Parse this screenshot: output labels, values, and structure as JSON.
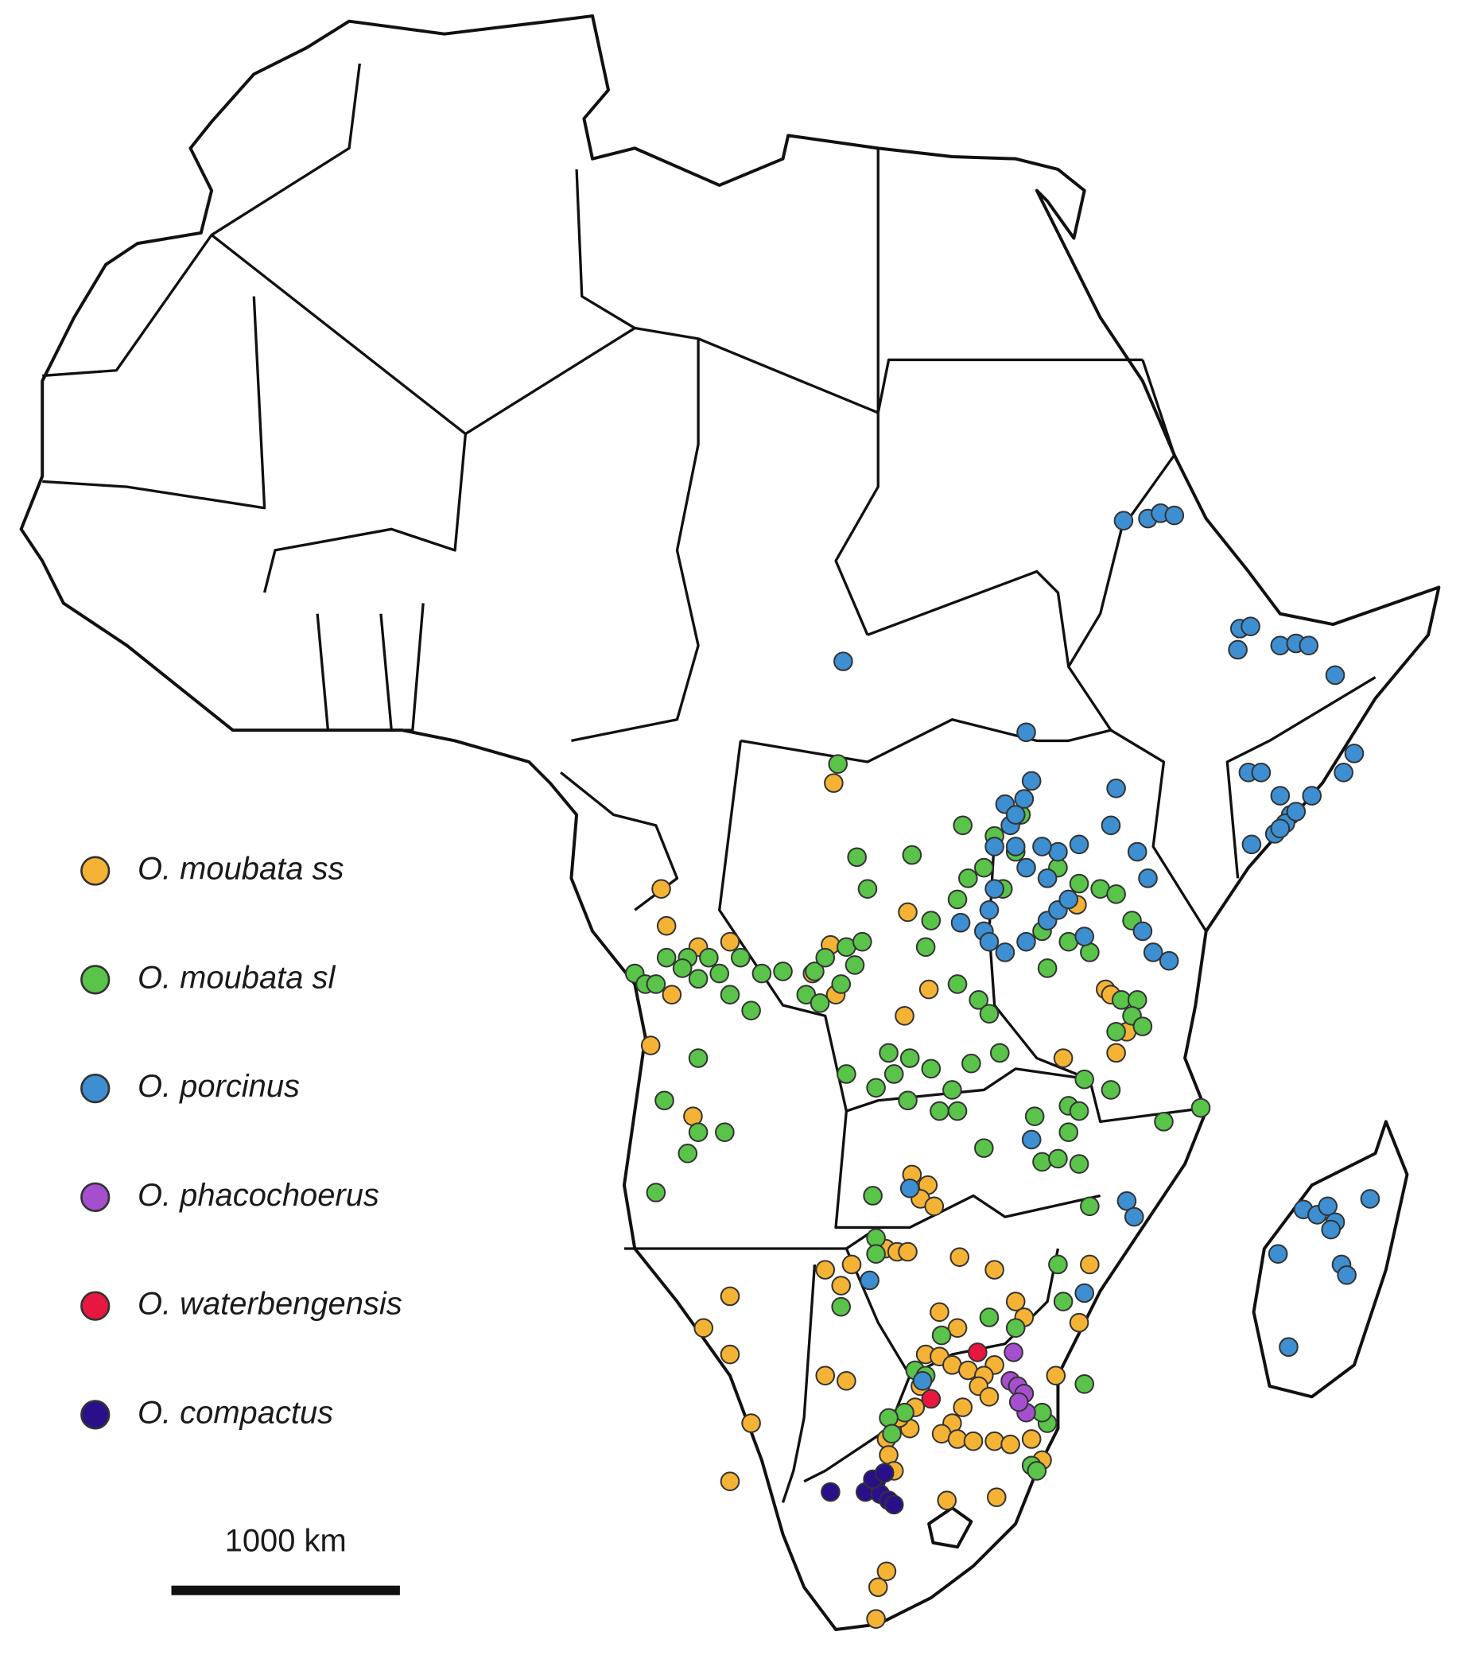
{
  "legend": [
    {
      "label": "O. moubata  ss",
      "color": "#f5b335"
    },
    {
      "label": "O. moubata sl",
      "color": "#5ac34a"
    },
    {
      "label": "O. porcinus",
      "color": "#3d8fd1"
    },
    {
      "label": "O. phacochoerus",
      "color": "#a54fcf"
    },
    {
      "label": "O. waterbengensis",
      "color": "#e8173f"
    },
    {
      "label": "O. compactus",
      "color": "#2a0f8a"
    }
  ],
  "scale_bar": {
    "label": "1000 km"
  }
}
